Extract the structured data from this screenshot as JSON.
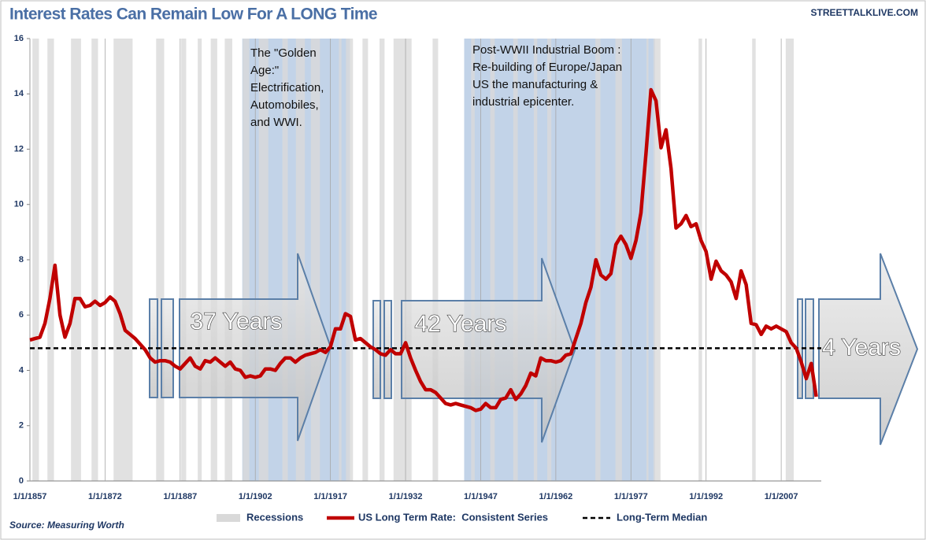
{
  "chart_data": {
    "type": "line",
    "title": "Interest Rates Can Remain Low For A LONG Time",
    "site": "STREETTALKLIVE.COM",
    "source": "Source: Measuring Worth",
    "x": [
      1857,
      1858,
      1859,
      1860,
      1861,
      1862,
      1863,
      1864,
      1865,
      1866,
      1867,
      1868,
      1869,
      1870,
      1871,
      1872,
      1873,
      1874,
      1875,
      1876,
      1877,
      1878,
      1879,
      1880,
      1881,
      1882,
      1883,
      1884,
      1885,
      1886,
      1887,
      1888,
      1889,
      1890,
      1891,
      1892,
      1893,
      1894,
      1895,
      1896,
      1897,
      1898,
      1899,
      1900,
      1901,
      1902,
      1903,
      1904,
      1905,
      1906,
      1907,
      1908,
      1909,
      1910,
      1911,
      1912,
      1913,
      1914,
      1915,
      1916,
      1917,
      1918,
      1919,
      1920,
      1921,
      1922,
      1923,
      1924,
      1925,
      1926,
      1927,
      1928,
      1929,
      1930,
      1931,
      1932,
      1933,
      1934,
      1935,
      1936,
      1937,
      1938,
      1939,
      1940,
      1941,
      1942,
      1943,
      1944,
      1945,
      1946,
      1947,
      1948,
      1949,
      1950,
      1951,
      1952,
      1953,
      1954,
      1955,
      1956,
      1957,
      1958,
      1959,
      1960,
      1961,
      1962,
      1963,
      1964,
      1965,
      1966,
      1967,
      1968,
      1969,
      1970,
      1971,
      1972,
      1973,
      1974,
      1975,
      1976,
      1977,
      1978,
      1979,
      1980,
      1981,
      1982,
      1983,
      1984,
      1985,
      1986,
      1987,
      1988,
      1989,
      1990,
      1991,
      1992,
      1993,
      1994,
      1995,
      1996,
      1997,
      1998,
      1999,
      2000,
      2001,
      2002,
      2003,
      2004,
      2005,
      2006,
      2007,
      2008,
      2009,
      2010,
      2011,
      2012,
      2013,
      2014
    ],
    "series": [
      {
        "name": "US Long Term Rate:  Consistent Series",
        "color": "#c00000",
        "values": [
          5.1,
          5.15,
          5.2,
          5.7,
          6.6,
          7.8,
          6.0,
          5.2,
          5.7,
          6.6,
          6.6,
          6.3,
          6.35,
          6.5,
          6.35,
          6.45,
          6.65,
          6.5,
          6.05,
          5.45,
          5.3,
          5.15,
          4.95,
          4.75,
          4.45,
          4.3,
          4.35,
          4.35,
          4.3,
          4.15,
          4.05,
          4.25,
          4.45,
          4.15,
          4.05,
          4.35,
          4.3,
          4.45,
          4.3,
          4.15,
          4.3,
          4.05,
          4.0,
          3.75,
          3.8,
          3.75,
          3.8,
          4.05,
          4.05,
          4.0,
          4.25,
          4.45,
          4.45,
          4.3,
          4.45,
          4.55,
          4.6,
          4.65,
          4.75,
          4.65,
          4.85,
          5.5,
          5.5,
          6.05,
          5.95,
          5.1,
          5.15,
          5.0,
          4.85,
          4.75,
          4.6,
          4.55,
          4.75,
          4.6,
          4.6,
          5.0,
          4.45,
          4.0,
          3.6,
          3.3,
          3.3,
          3.2,
          3.0,
          2.8,
          2.75,
          2.8,
          2.75,
          2.7,
          2.65,
          2.55,
          2.6,
          2.8,
          2.65,
          2.65,
          2.95,
          3.0,
          3.3,
          2.95,
          3.15,
          3.45,
          3.9,
          3.8,
          4.45,
          4.35,
          4.35,
          4.3,
          4.35,
          4.55,
          4.6,
          5.15,
          5.7,
          6.45,
          7.0,
          8.0,
          7.45,
          7.3,
          7.5,
          8.55,
          8.85,
          8.55,
          8.05,
          8.7,
          9.7,
          11.85,
          14.15,
          13.75,
          12.05,
          12.7,
          11.3,
          9.15,
          9.3,
          9.6,
          9.2,
          9.3,
          8.7,
          8.3,
          7.3,
          7.95,
          7.6,
          7.45,
          7.2,
          6.6,
          7.6,
          7.1,
          5.7,
          5.65,
          5.3,
          5.6,
          5.5,
          5.6,
          5.5,
          5.4,
          5.0,
          4.8,
          4.3,
          3.7,
          4.25,
          3.05
        ]
      }
    ],
    "median": {
      "name": "Long-Term Median",
      "value": 4.8,
      "color": "#000000"
    },
    "recessions": {
      "name": "Recessions",
      "color": "#d9d9d9",
      "periods": [
        [
          1857.5,
          1858.8
        ],
        [
          1860.5,
          1861.8
        ],
        [
          1865.2,
          1867.2
        ],
        [
          1869.3,
          1870.6
        ],
        [
          1873.7,
          1877.5
        ],
        [
          1882.2,
          1883.8
        ],
        [
          1887.2,
          1888.2
        ],
        [
          1890.5,
          1891.3
        ],
        [
          1893.1,
          1894.4
        ],
        [
          1895.9,
          1897.4
        ],
        [
          1899.5,
          1900.8
        ],
        [
          1902.7,
          1904.6
        ],
        [
          1907.4,
          1908.5
        ],
        [
          1910.1,
          1911.9
        ],
        [
          1913.1,
          1914.9
        ],
        [
          1918.7,
          1919.2
        ],
        [
          1920.1,
          1921.5
        ],
        [
          1923.4,
          1924.5
        ],
        [
          1926.8,
          1927.8
        ],
        [
          1929.6,
          1933.2
        ],
        [
          1937.4,
          1938.5
        ],
        [
          1945.1,
          1945.8
        ],
        [
          1948.9,
          1949.8
        ],
        [
          1953.5,
          1954.4
        ],
        [
          1957.6,
          1958.3
        ],
        [
          1960.3,
          1961.1
        ],
        [
          1969.9,
          1970.9
        ],
        [
          1973.9,
          1975.2
        ],
        [
          1980.1,
          1980.5
        ],
        [
          1981.5,
          1982.9
        ],
        [
          1990.5,
          1991.2
        ],
        [
          2001.2,
          2001.9
        ],
        [
          2007.9,
          2009.5
        ]
      ]
    },
    "highlights": [
      {
        "range": [
          1899.4,
          1920.9
        ],
        "lines": [
          "The \"Golden",
          "Age:\"",
          "Electrification,",
          "Automobiles,",
          "and WWI."
        ]
      },
      {
        "range": [
          1943.7,
          1981.8
        ],
        "lines": [
          "Post-WWII Industrial Boom :",
          "Re-building of Europe/Japan",
          "US the manufacturing &",
          "industrial epicenter."
        ]
      }
    ],
    "annotations": [
      "37 Years",
      "42 Years",
      "4 Years"
    ],
    "xlim": [
      1857,
      2015
    ],
    "xticks": [
      {
        "value": 1857,
        "label": "1/1/1857"
      },
      {
        "value": 1872,
        "label": "1/1/1872"
      },
      {
        "value": 1887,
        "label": "1/1/1887"
      },
      {
        "value": 1902,
        "label": "1/1/1902"
      },
      {
        "value": 1917,
        "label": "1/1/1917"
      },
      {
        "value": 1932,
        "label": "1/1/1932"
      },
      {
        "value": 1947,
        "label": "1/1/1947"
      },
      {
        "value": 1962,
        "label": "1/1/1962"
      },
      {
        "value": 1977,
        "label": "1/1/1977"
      },
      {
        "value": 1992,
        "label": "1/1/1992"
      },
      {
        "value": 2007,
        "label": "1/1/2007"
      }
    ],
    "ylim": [
      0,
      16
    ],
    "yticks": [
      0,
      2,
      4,
      6,
      8,
      10,
      12,
      14,
      16
    ],
    "grid": true
  }
}
